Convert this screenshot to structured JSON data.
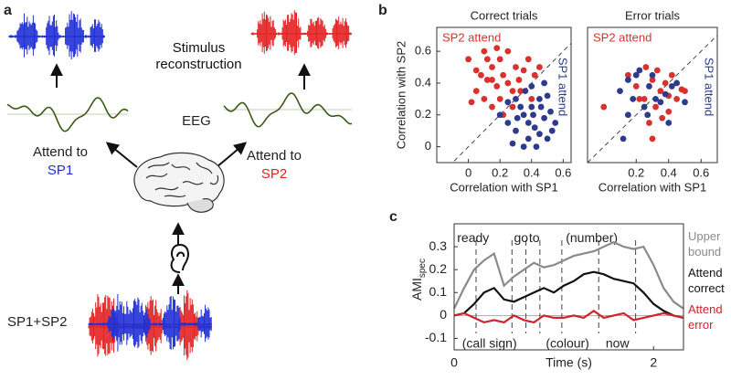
{
  "diagram": {
    "panel_label": "a",
    "stimulus_label": "Stimulus reconstruction",
    "eeg_label": "EEG",
    "attend_left": "Attend to",
    "speaker_left": "SP1",
    "attend_right": "Attend to",
    "speaker_right": "SP2",
    "mixture_label": "SP1+SP2"
  },
  "chart_data": [
    {
      "type": "scatter",
      "panel_label": "b",
      "title": "Correct trials",
      "x_label": "Correlation with SP1",
      "y_label": "Correlation with SP2",
      "xlim": [
        -0.2,
        0.65
      ],
      "ylim": [
        -0.1,
        0.75
      ],
      "xticks": [
        0,
        0.2,
        0.4,
        0.6
      ],
      "yticks": [
        0,
        0.2,
        0.4,
        0.6
      ],
      "diagonal": true,
      "series": [
        {
          "name": "SP2 attend",
          "color": "#d9312e",
          "x": [
            0.0,
            0.05,
            0.1,
            0.12,
            0.15,
            0.18,
            0.2,
            0.22,
            0.25,
            0.28,
            0.3,
            0.32,
            0.05,
            0.1,
            0.15,
            0.2,
            0.25,
            0.08,
            0.35,
            0.38,
            0.4,
            0.42,
            0.12,
            0.18,
            0.02,
            0.28,
            0.33,
            0.22,
            0.45,
            0.15
          ],
          "values": [
            0.55,
            0.48,
            0.6,
            0.42,
            0.5,
            0.38,
            0.55,
            0.45,
            0.6,
            0.35,
            0.5,
            0.42,
            0.35,
            0.3,
            0.25,
            0.3,
            0.4,
            0.45,
            0.48,
            0.55,
            0.3,
            0.45,
            0.55,
            0.62,
            0.28,
            0.25,
            0.35,
            0.2,
            0.5,
            0.42
          ]
        },
        {
          "name": "SP1 attend",
          "color": "#2e3a8c",
          "x": [
            0.25,
            0.3,
            0.35,
            0.38,
            0.4,
            0.42,
            0.45,
            0.48,
            0.5,
            0.52,
            0.3,
            0.35,
            0.4,
            0.45,
            0.2,
            0.28,
            0.33,
            0.55,
            0.5,
            0.43,
            0.38,
            0.48,
            0.36,
            0.25,
            0.53,
            0.41,
            0.31,
            0.46
          ],
          "values": [
            0.15,
            0.1,
            0.2,
            0.05,
            0.25,
            0.12,
            0.3,
            0.18,
            0.05,
            0.22,
            0.3,
            0.0,
            0.38,
            0.08,
            0.2,
            0.02,
            0.25,
            0.15,
            0.32,
            0.0,
            0.15,
            0.4,
            0.35,
            0.28,
            0.1,
            0.2,
            0.18,
            0.25
          ]
        }
      ]
    },
    {
      "type": "scatter",
      "title": "Error trials",
      "x_label": "Correlation with SP1",
      "xlim": [
        -0.1,
        0.7
      ],
      "ylim": [
        -0.1,
        0.75
      ],
      "xticks": [
        0.2,
        0.4,
        0.6
      ],
      "diagonal": true,
      "series": [
        {
          "name": "SP2 attend",
          "color": "#d9312e",
          "x": [
            0.15,
            0.2,
            0.25,
            0.3,
            0.32,
            0.35,
            0.38,
            0.4,
            0.42,
            0.45,
            0.28,
            0.33,
            0.22,
            0.36,
            0.48,
            0.0,
            0.3,
            0.4,
            0.5,
            0.26
          ],
          "values": [
            0.45,
            0.38,
            0.3,
            0.42,
            0.25,
            0.35,
            0.4,
            0.22,
            0.45,
            0.3,
            0.15,
            0.48,
            0.3,
            0.18,
            0.36,
            0.25,
            0.05,
            0.32,
            0.35,
            0.5
          ]
        },
        {
          "name": "SP1 attend",
          "color": "#2e3a8c",
          "x": [
            0.1,
            0.15,
            0.2,
            0.25,
            0.28,
            0.32,
            0.35,
            0.4,
            0.45,
            0.18,
            0.3,
            0.38,
            0.12,
            0.22,
            0.5,
            0.42,
            0.27,
            0.15
          ],
          "values": [
            0.35,
            0.2,
            0.45,
            0.25,
            0.38,
            0.3,
            0.28,
            0.15,
            0.4,
            0.3,
            0.45,
            0.33,
            0.05,
            0.48,
            0.28,
            0.38,
            0.2,
            0.42
          ]
        }
      ]
    },
    {
      "type": "line",
      "panel_label": "c",
      "x_label": "Time (s)",
      "y_label": "AMI",
      "y_label_subscript": "spec",
      "xlim": [
        0,
        2.3
      ],
      "ylim": [
        -0.15,
        0.4
      ],
      "xticks": [
        0,
        2
      ],
      "yticks": [
        -0.1,
        0,
        0.1,
        0.2,
        0.3
      ],
      "x": [
        0,
        0.1,
        0.2,
        0.3,
        0.4,
        0.5,
        0.6,
        0.7,
        0.8,
        0.9,
        1.0,
        1.1,
        1.2,
        1.3,
        1.4,
        1.5,
        1.6,
        1.7,
        1.8,
        1.9,
        2.0,
        2.1,
        2.2,
        2.3
      ],
      "series": [
        {
          "name": "Upper bound",
          "color": "#8a8a8a",
          "values": [
            0.03,
            0.12,
            0.2,
            0.24,
            0.27,
            0.13,
            0.17,
            0.2,
            0.23,
            0.21,
            0.22,
            0.24,
            0.26,
            0.27,
            0.28,
            0.3,
            0.32,
            0.3,
            0.29,
            0.3,
            0.22,
            0.12,
            0.06,
            0.03
          ]
        },
        {
          "name": "Attend correct",
          "color": "#111111",
          "values": [
            0,
            0.01,
            0.05,
            0.1,
            0.12,
            0.07,
            0.06,
            0.08,
            0.1,
            0.12,
            0.1,
            0.13,
            0.15,
            0.18,
            0.19,
            0.18,
            0.16,
            0.15,
            0.14,
            0.1,
            0.05,
            0.02,
            0,
            -0.01
          ]
        },
        {
          "name": "Attend error",
          "color": "#d0232a",
          "values": [
            0,
            0.01,
            -0.01,
            -0.03,
            -0.02,
            -0.03,
            0,
            -0.02,
            -0.03,
            0,
            -0.01,
            -0.01,
            0,
            -0.01,
            0.02,
            -0.01,
            0,
            0.01,
            -0.02,
            -0.01,
            0,
            0.01,
            0,
            -0.01
          ]
        }
      ],
      "event_lines": [
        0.22,
        0.58,
        0.72,
        0.86,
        1.08,
        1.45,
        1.82
      ],
      "annotations": [
        {
          "text": "ready",
          "x": 0.03,
          "y": 0.335
        },
        {
          "text": "go",
          "x": 0.6,
          "y": 0.335
        },
        {
          "text": "to",
          "x": 0.75,
          "y": 0.335
        },
        {
          "text": "(number)",
          "x": 1.12,
          "y": 0.335
        },
        {
          "text": "(call sign)",
          "x": 0.08,
          "y": -0.125
        },
        {
          "text": "(colour)",
          "x": 0.92,
          "y": -0.125
        },
        {
          "text": "now",
          "x": 1.52,
          "y": -0.125
        }
      ]
    }
  ]
}
